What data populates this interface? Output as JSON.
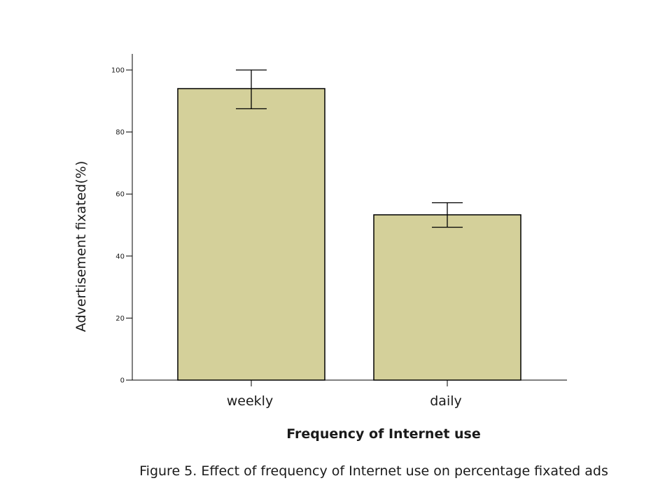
{
  "chart_data": {
    "type": "bar",
    "categories": [
      "weekly",
      "daily"
    ],
    "values": [
      94,
      53.3
    ],
    "error_bars": [
      {
        "low": 87.5,
        "high": 100
      },
      {
        "low": 49.3,
        "high": 57.2
      }
    ],
    "xlabel": "Frequency of Internet use",
    "ylabel": "Advertisement fixated(%)",
    "ylim": [
      0,
      100
    ],
    "yticks": [
      0,
      20,
      40,
      60,
      80,
      100
    ],
    "grid": false,
    "bar_color": "#d4d09a",
    "edge_color": "#000000"
  },
  "caption": "Figure 5. Effect of frequency of Internet use on percentage fixated ads"
}
